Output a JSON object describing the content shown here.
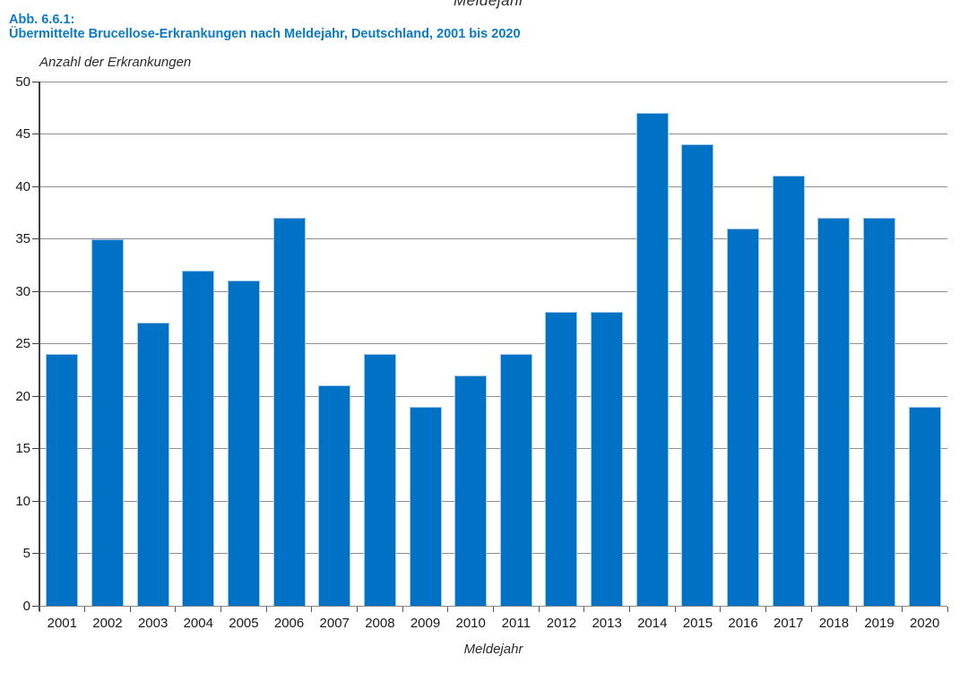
{
  "figure": {
    "label": "Abb. 6.6.1:",
    "title": "Übermittelte Brucellose-Erkrankungen nach Meldejahr, Deutschland, 2001 bis 2020",
    "clipped_text_above": "Meldejahr"
  },
  "chart_data": {
    "type": "bar",
    "title": "",
    "ylabel": "Anzahl der Erkrankungen",
    "xlabel": "Meldejahr",
    "categories": [
      "2001",
      "2002",
      "2003",
      "2004",
      "2005",
      "2006",
      "2007",
      "2008",
      "2009",
      "2010",
      "2011",
      "2012",
      "2013",
      "2014",
      "2015",
      "2016",
      "2017",
      "2018",
      "2019",
      "2020"
    ],
    "values": [
      24,
      35,
      27,
      32,
      31,
      37,
      21,
      24,
      19,
      22,
      24,
      28,
      28,
      47,
      44,
      36,
      41,
      37,
      37,
      19
    ],
    "ylim": [
      0,
      50
    ],
    "ytick_step": 5,
    "grid": true,
    "legend": false
  },
  "colors": {
    "bar_fill": "#0072c6",
    "bar_border": "#9fc5e8",
    "title_blue": "#0b7ac4",
    "gridline": "#8f8f8f",
    "axis_dark": "#3f3f3f",
    "axis_light": "#8a8a8a",
    "text": "#1a1a1a"
  }
}
